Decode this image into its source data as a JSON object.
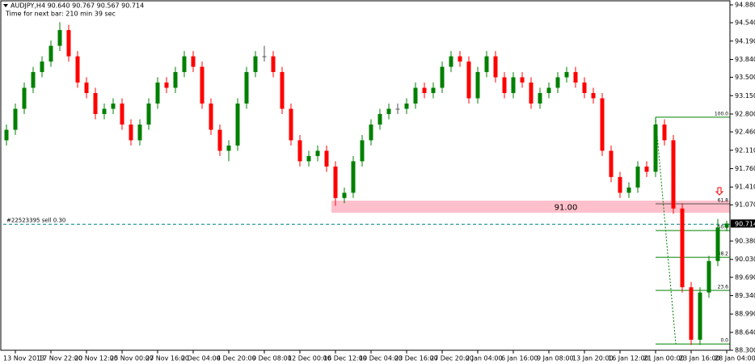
{
  "chart_data": {
    "type": "candlestick",
    "title": "AUDJPY,H4  90.640 90.767 90.567 90.714",
    "subtitle": "Time for next bar: 210 min 39 sec",
    "categories": [
      null,
      "13 Nov 2013",
      null,
      null,
      null,
      "17 Nov 22:00",
      null,
      null,
      null,
      "20 Nov 12:00",
      null,
      null,
      null,
      "25 Nov 00:00",
      null,
      null,
      null,
      "27 Nov 16:00",
      null,
      null,
      null,
      "2 Dec 04:00",
      null,
      null,
      null,
      "4 Dec 20:00",
      null,
      null,
      null,
      "9 Dec 08:00",
      null,
      null,
      null,
      "12 Dec 00:00",
      null,
      null,
      null,
      "16 Dec 12:00",
      null,
      null,
      null,
      "19 Dec 04:00",
      null,
      null,
      null,
      "23 Dec 16:00",
      null,
      null,
      null,
      "27 Dec 20:00",
      null,
      null,
      null,
      "2 Jan 04:00",
      null,
      null,
      null,
      "6 Jan 16:00",
      null,
      null,
      null,
      "9 Jan 08:00",
      null,
      null,
      null,
      "13 Jan 20:00",
      null,
      null,
      null,
      "16 Jan 12:00",
      null,
      null,
      null,
      "21 Jan 00:00",
      null,
      null,
      null,
      "23 Jan 16:00",
      null,
      null,
      null,
      "28 Jan 04:00"
    ],
    "open": [
      92.3,
      92.5,
      92.9,
      93.3,
      93.6,
      93.8,
      94.1,
      94.4,
      93.9,
      93.4,
      93.2,
      92.8,
      92.9,
      93.0,
      92.6,
      92.3,
      92.6,
      93.0,
      93.4,
      93.3,
      93.6,
      93.9,
      93.7,
      93.0,
      92.5,
      92.1,
      92.2,
      93.0,
      93.6,
      93.9,
      93.9,
      93.6,
      92.9,
      92.3,
      91.9,
      92.0,
      92.1,
      91.8,
      91.2,
      91.3,
      91.9,
      92.3,
      92.6,
      92.8,
      92.9,
      92.9,
      93.0,
      93.3,
      93.2,
      93.3,
      93.7,
      93.9,
      93.8,
      93.1,
      93.6,
      93.9,
      93.5,
      93.2,
      93.5,
      93.4,
      93.0,
      93.2,
      93.3,
      93.5,
      93.6,
      93.4,
      93.2,
      93.1,
      92.1,
      91.6,
      91.3,
      91.4,
      91.8,
      91.7,
      92.6,
      92.3,
      91.0,
      89.5,
      88.5,
      89.4,
      90.0,
      90.64
    ],
    "high": [
      92.6,
      93.0,
      93.4,
      93.7,
      93.9,
      94.2,
      94.55,
      94.5,
      94.0,
      93.5,
      93.3,
      93.0,
      93.1,
      93.1,
      92.7,
      92.7,
      93.1,
      93.5,
      93.5,
      93.7,
      94.0,
      94.0,
      93.8,
      93.1,
      92.6,
      92.3,
      93.1,
      93.7,
      94.0,
      94.1,
      94.0,
      93.7,
      93.0,
      92.4,
      92.1,
      92.2,
      92.2,
      91.9,
      91.4,
      92.0,
      92.4,
      92.7,
      92.9,
      93.0,
      93.0,
      93.1,
      93.4,
      93.4,
      93.4,
      93.8,
      94.0,
      94.0,
      93.9,
      93.7,
      94.0,
      94.0,
      93.6,
      93.6,
      93.6,
      93.5,
      93.3,
      93.4,
      93.6,
      93.7,
      93.7,
      93.5,
      93.3,
      93.2,
      92.2,
      91.7,
      91.5,
      91.9,
      91.9,
      92.74,
      92.7,
      92.4,
      91.1,
      89.6,
      89.5,
      90.1,
      90.8,
      90.767
    ],
    "low": [
      92.2,
      92.4,
      92.8,
      93.2,
      93.5,
      93.7,
      94.0,
      93.8,
      93.3,
      93.1,
      92.7,
      92.7,
      92.8,
      92.5,
      92.2,
      92.2,
      92.5,
      92.9,
      93.2,
      93.2,
      93.5,
      93.6,
      92.9,
      92.4,
      92.0,
      91.9,
      92.1,
      92.9,
      93.5,
      93.8,
      93.5,
      92.8,
      92.2,
      91.8,
      91.8,
      91.9,
      91.7,
      91.05,
      91.1,
      91.2,
      91.8,
      92.2,
      92.5,
      92.7,
      92.8,
      92.8,
      92.9,
      93.1,
      93.1,
      93.2,
      93.6,
      93.7,
      93.0,
      93.0,
      93.5,
      93.4,
      93.1,
      93.1,
      93.3,
      92.9,
      92.9,
      93.1,
      93.2,
      93.4,
      93.3,
      93.1,
      93.0,
      92.0,
      91.5,
      91.2,
      91.2,
      91.3,
      91.6,
      91.6,
      92.2,
      90.9,
      89.4,
      88.4,
      88.4,
      89.3,
      89.9,
      90.567
    ],
    "close": [
      92.5,
      92.9,
      93.3,
      93.6,
      93.8,
      94.1,
      94.4,
      93.9,
      93.4,
      93.2,
      92.8,
      92.9,
      93.0,
      92.6,
      92.3,
      92.6,
      93.0,
      93.4,
      93.3,
      93.6,
      93.9,
      93.7,
      93.0,
      92.5,
      92.1,
      92.2,
      93.0,
      93.6,
      93.9,
      93.9,
      93.6,
      92.9,
      92.3,
      91.9,
      92.0,
      92.1,
      91.8,
      91.2,
      91.3,
      91.9,
      92.3,
      92.6,
      92.8,
      92.9,
      92.9,
      93.0,
      93.3,
      93.2,
      93.3,
      93.7,
      93.9,
      93.8,
      93.1,
      93.6,
      93.9,
      93.5,
      93.2,
      93.5,
      93.4,
      93.0,
      93.2,
      93.3,
      93.5,
      93.6,
      93.4,
      93.2,
      93.1,
      92.1,
      91.6,
      91.3,
      91.4,
      91.8,
      91.7,
      92.6,
      92.3,
      91.0,
      89.5,
      88.5,
      89.4,
      90.0,
      90.64,
      90.714
    ],
    "up_color": "#008000",
    "down_color": "#ff0000",
    "ylim": [
      88.3,
      94.88
    ],
    "yticks": [
      {
        "value": 94.88,
        "label": "94.880"
      },
      {
        "value": 94.54,
        "label": "94.540"
      },
      {
        "value": 94.19,
        "label": "94.190"
      },
      {
        "value": 93.84,
        "label": "93.840"
      },
      {
        "value": 93.5,
        "label": "93.500"
      },
      {
        "value": 93.15,
        "label": "93.150"
      },
      {
        "value": 92.8,
        "label": "92.800"
      },
      {
        "value": 92.46,
        "label": "92.460"
      },
      {
        "value": 92.11,
        "label": "92.110"
      },
      {
        "value": 91.76,
        "label": "91.760"
      },
      {
        "value": 91.41,
        "label": "91.410"
      },
      {
        "value": 91.07,
        "label": "91.070"
      },
      {
        "value": 90.38,
        "label": "90.380"
      },
      {
        "value": 90.03,
        "label": "90.030"
      },
      {
        "value": 89.69,
        "label": "89.690"
      },
      {
        "value": 89.34,
        "label": "89.340"
      },
      {
        "value": 88.99,
        "label": "88.990"
      },
      {
        "value": 88.64,
        "label": "88.640"
      },
      {
        "value": 88.3,
        "label": "88.300"
      }
    ],
    "current_price": {
      "value": 90.714,
      "label": "90.714"
    },
    "zone": {
      "label": "91.00",
      "top": 91.15,
      "bottom": 90.92,
      "color": "#ffc0cb"
    },
    "order_line": {
      "label": "#22523395 sell 0.30",
      "price": 90.7
    },
    "fibonacci": {
      "color": "#008000",
      "levels": [
        {
          "value": 100,
          "label": "100.0",
          "price": 92.74
        },
        {
          "value": 61.8,
          "label": "61.8",
          "price": 91.09
        },
        {
          "value": 50,
          "label": "50.0",
          "price": 90.58
        },
        {
          "value": 38.2,
          "label": "38.2",
          "price": 90.07
        },
        {
          "value": 23.6,
          "label": "23.6",
          "price": 89.44
        },
        {
          "value": 0,
          "label": "0.0",
          "price": 88.42
        }
      ]
    }
  }
}
